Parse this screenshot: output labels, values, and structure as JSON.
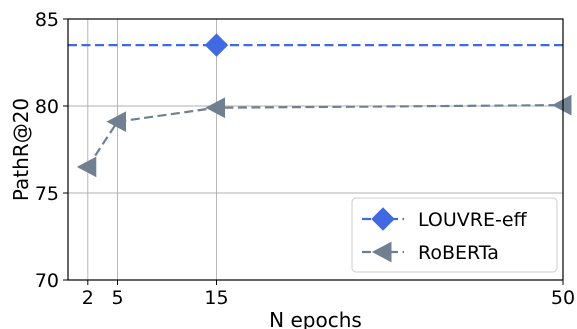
{
  "chart_data": {
    "type": "line",
    "xlabel": "N epochs",
    "ylabel": "PathR@20",
    "xlim": [
      0,
      50
    ],
    "ylim": [
      70,
      85
    ],
    "x_ticks": [
      2,
      5,
      15,
      50
    ],
    "y_ticks": [
      70,
      75,
      80,
      85
    ],
    "grid": true,
    "grid_lines_x": [
      2,
      5,
      15
    ],
    "grid_lines_y": [
      75,
      80
    ],
    "legend_position": "bottom-right",
    "series": [
      {
        "name": "LOUVRE-eff",
        "color": "#4169E1",
        "marker": "diamond",
        "line_style": "dashed",
        "reference_line_y": 83.5,
        "points": [
          {
            "x": 15,
            "y": 83.5
          }
        ]
      },
      {
        "name": "RoBERTa",
        "color": "#708090",
        "marker": "triangle-left",
        "line_style": "dashed",
        "points": [
          {
            "x": 2,
            "y": 76.5
          },
          {
            "x": 5,
            "y": 79.1
          },
          {
            "x": 15,
            "y": 79.9
          },
          {
            "x": 50,
            "y": 80.05
          }
        ]
      }
    ]
  }
}
